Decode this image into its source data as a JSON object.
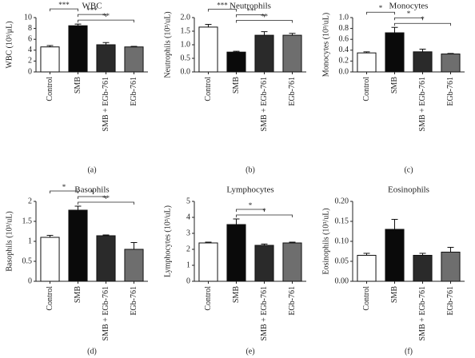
{
  "chart_data": [
    {
      "type": "bar",
      "title": "WBC",
      "panel_label": "(a)",
      "ylabel": "WBC (10³/μL)",
      "categories": [
        "Control",
        "SMB",
        "SMB + EGb-761",
        "EGb-761"
      ],
      "values": [
        4.6,
        8.5,
        5.0,
        4.6
      ],
      "errors": [
        0.25,
        0.3,
        0.4,
        0.1
      ],
      "colors": [
        "#ffffff",
        "#0a0a0a",
        "#2a2a2a",
        "#6e6e6e"
      ],
      "ylim": [
        0,
        10
      ],
      "yticks": [
        0,
        2,
        4,
        6,
        8,
        10
      ],
      "significance": [
        {
          "between": [
            0,
            1
          ],
          "label": "***"
        },
        {
          "between": [
            1,
            2
          ],
          "label": "***"
        },
        {
          "between": [
            1,
            3
          ],
          "label": "**"
        }
      ]
    },
    {
      "type": "bar",
      "title": "Neutrophils",
      "panel_label": "(b)",
      "ylabel": "Neutrophils (10³/uL)",
      "categories": [
        "Control",
        "SMB",
        "SMB + EGb-761",
        "EGb-761"
      ],
      "values": [
        1.65,
        0.73,
        1.35,
        1.35
      ],
      "errors": [
        0.1,
        0.03,
        0.13,
        0.07
      ],
      "colors": [
        "#ffffff",
        "#0a0a0a",
        "#2a2a2a",
        "#6e6e6e"
      ],
      "ylim": [
        0,
        2
      ],
      "yticks": [
        {
          "value": 0,
          "label": "0.0"
        },
        0.5,
        {
          "value": 1,
          "label": "1.0"
        },
        1.5,
        {
          "value": 2,
          "label": "2.0"
        }
      ],
      "significance": [
        {
          "between": [
            0,
            1
          ],
          "label": "***"
        },
        {
          "between": [
            1,
            2
          ],
          "label": "**"
        },
        {
          "between": [
            1,
            3
          ],
          "label": "**"
        }
      ]
    },
    {
      "type": "bar",
      "title": "Monocytes",
      "panel_label": "(c)",
      "ylabel": "Monocytes (10³/uL)",
      "categories": [
        "Control",
        "SMB",
        "SMB + EGb-761",
        "EGb-761"
      ],
      "values": [
        0.35,
        0.72,
        0.37,
        0.33
      ],
      "errors": [
        0.02,
        0.1,
        0.05,
        0.01
      ],
      "colors": [
        "#ffffff",
        "#0a0a0a",
        "#2a2a2a",
        "#6e6e6e"
      ],
      "ylim": [
        0,
        1
      ],
      "yticks": [
        {
          "value": 0,
          "label": "0.0"
        },
        0.2,
        0.4,
        0.6,
        0.8,
        {
          "value": 1,
          "label": "1.0"
        }
      ],
      "significance": [
        {
          "between": [
            0,
            1
          ],
          "label": "*"
        },
        {
          "between": [
            1,
            2
          ],
          "label": "*"
        },
        {
          "between": [
            1,
            3
          ],
          "label": "*"
        }
      ]
    },
    {
      "type": "bar",
      "title": "Basophils",
      "panel_label": "(d)",
      "ylabel": "Basophils (10³/uL)",
      "categories": [
        "Control",
        "SMB",
        "SMB + EGb-761",
        "EGb-761"
      ],
      "values": [
        1.1,
        1.78,
        1.14,
        0.8
      ],
      "errors": [
        0.05,
        0.1,
        0.02,
        0.17
      ],
      "colors": [
        "#ffffff",
        "#0a0a0a",
        "#2a2a2a",
        "#6e6e6e"
      ],
      "ylim": [
        0,
        2
      ],
      "yticks": [
        0,
        0.5,
        1,
        1.5,
        2
      ],
      "significance": [
        {
          "between": [
            0,
            1
          ],
          "label": "*"
        },
        {
          "between": [
            1,
            2
          ],
          "label": "*"
        },
        {
          "between": [
            1,
            3
          ],
          "label": "**"
        }
      ]
    },
    {
      "type": "bar",
      "title": "Lymphocytes",
      "panel_label": "(e)",
      "ylabel": "Lymphocytes (10³/uL)",
      "categories": [
        "Control",
        "SMB",
        "SMB + EGb-761",
        "EGb-761"
      ],
      "values": [
        2.4,
        3.55,
        2.25,
        2.4
      ],
      "errors": [
        0.05,
        0.35,
        0.08,
        0.05
      ],
      "colors": [
        "#ffffff",
        "#0a0a0a",
        "#2a2a2a",
        "#6e6e6e"
      ],
      "ylim": [
        0,
        5
      ],
      "yticks": [
        0,
        1,
        2,
        3,
        4,
        5
      ],
      "significance": [
        {
          "between": [
            1,
            2
          ],
          "label": "*"
        },
        {
          "between": [
            1,
            3
          ],
          "label": "*"
        }
      ]
    },
    {
      "type": "bar",
      "title": "Eosinophils",
      "panel_label": "(f)",
      "ylabel": "Eosinophils (10³/uL)",
      "categories": [
        "Control",
        "SMB",
        "SMB + EGb-761",
        "EGb-761"
      ],
      "values": [
        0.065,
        0.13,
        0.065,
        0.073
      ],
      "errors": [
        0.005,
        0.025,
        0.005,
        0.012
      ],
      "colors": [
        "#ffffff",
        "#0a0a0a",
        "#2a2a2a",
        "#6e6e6e"
      ],
      "ylim": [
        0,
        0.2
      ],
      "yticks": [
        {
          "value": 0,
          "label": "0.00"
        },
        0.05,
        {
          "value": 0.1,
          "label": "0.10"
        },
        0.15,
        {
          "value": 0.2,
          "label": "0.20"
        }
      ],
      "significance": []
    }
  ]
}
